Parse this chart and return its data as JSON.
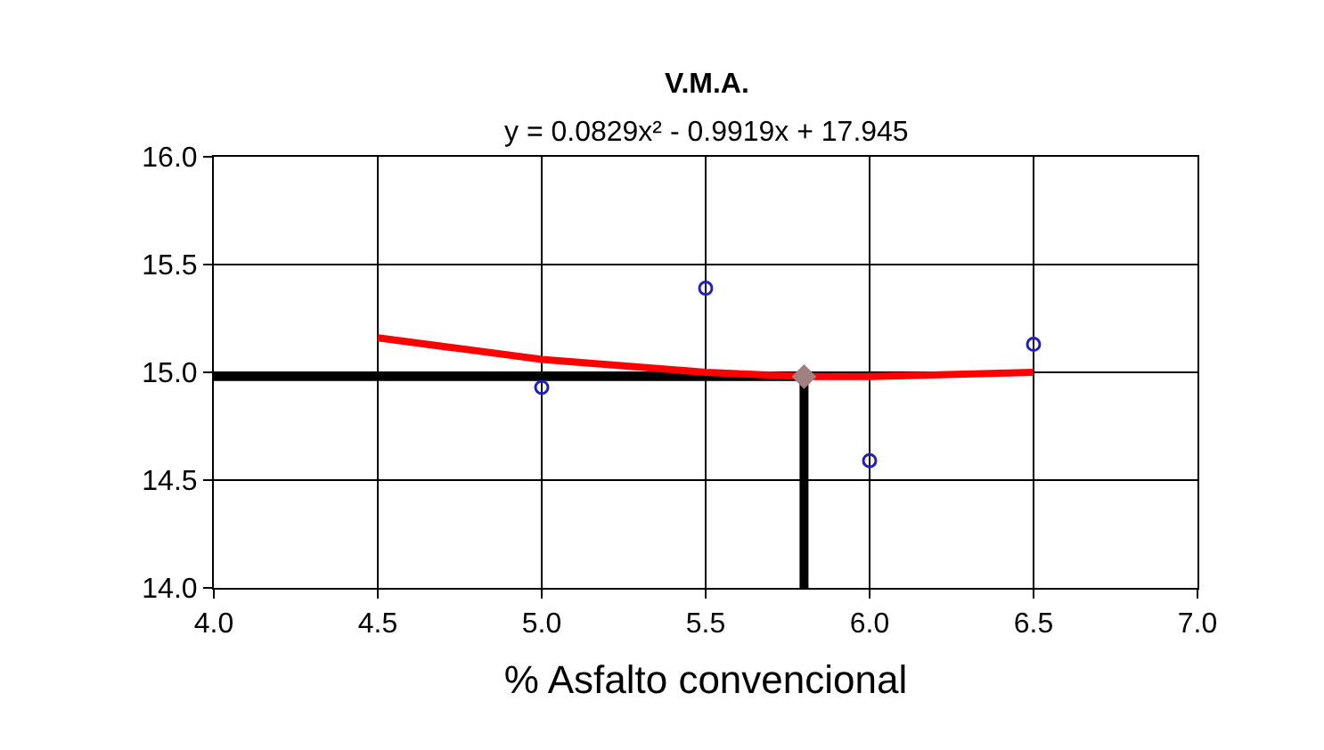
{
  "chart_data": {
    "type": "scatter",
    "title": "V.M.A.",
    "subtitle": "y = 0.0829x² - 0.9919x + 17.945",
    "xlabel": "% Asfalto convencional",
    "xlim": [
      4.0,
      7.0
    ],
    "xticks": [
      {
        "value": 4,
        "label": "4.0"
      },
      {
        "value": 4.5,
        "label": "4.5"
      },
      {
        "value": 5,
        "label": "5.0"
      },
      {
        "value": 5.5,
        "label": "5.5"
      },
      {
        "value": 6,
        "label": "6.0"
      },
      {
        "value": 6.5,
        "label": "6.5"
      },
      {
        "value": 7,
        "label": "7.0"
      }
    ],
    "ylim": [
      14.0,
      16.0
    ],
    "yticks": [
      {
        "value": 14,
        "label": "14.0"
      },
      {
        "value": 14.5,
        "label": "14.5"
      },
      {
        "value": 15,
        "label": "15.0"
      },
      {
        "value": 15.5,
        "label": "15.5"
      },
      {
        "value": 16,
        "label": "16.0"
      }
    ],
    "grid": true,
    "series": [
      {
        "type": "line",
        "color": "#000000",
        "x": [
          4.0,
          5.8,
          5.8
        ],
        "values": [
          14.98,
          14.98,
          14.0
        ],
        "marker": "none"
      },
      {
        "type": "line",
        "color": "#ff0000",
        "x": [
          4.5,
          5.0,
          5.5,
          5.8,
          6.0,
          6.5
        ],
        "values": [
          15.16,
          15.06,
          15.0,
          14.98,
          14.98,
          15.0
        ],
        "marker": "none"
      },
      {
        "color": "#2020c0",
        "x": [
          5.0,
          5.5,
          6.0,
          6.5
        ],
        "values": [
          14.93,
          15.39,
          14.59,
          15.13
        ],
        "marker": "circle"
      },
      {
        "color": "#a08080",
        "x": [
          5.8
        ],
        "values": [
          14.98
        ],
        "marker": "diamond"
      }
    ]
  }
}
